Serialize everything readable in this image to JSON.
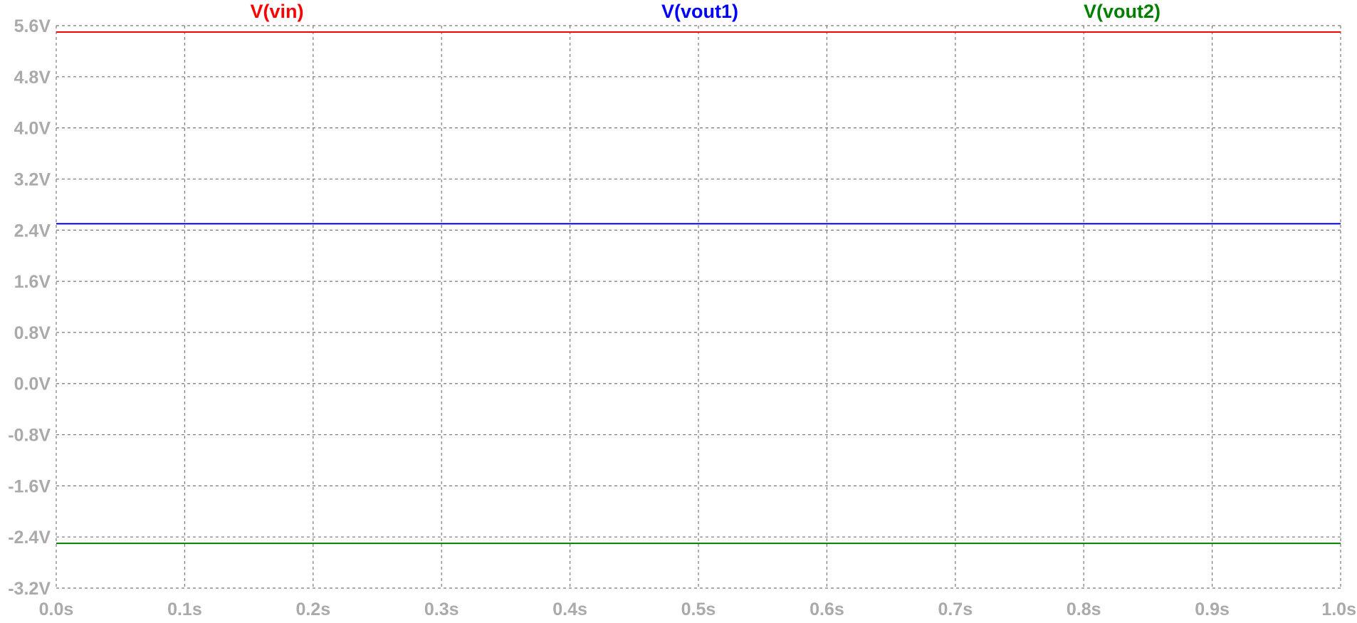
{
  "chart_data": {
    "type": "line",
    "title": "",
    "xlabel": "",
    "ylabel": "",
    "grid": true,
    "grid_style": "dashed",
    "legend_placement": "top",
    "xlim": [
      0.0,
      1.0
    ],
    "ylim": [
      -3.2,
      5.6
    ],
    "x_ticks": [
      0.0,
      0.1,
      0.2,
      0.3,
      0.4,
      0.5,
      0.6,
      0.7,
      0.8,
      0.9,
      1.0
    ],
    "x_tick_labels": [
      "0.0s",
      "0.1s",
      "0.2s",
      "0.3s",
      "0.4s",
      "0.5s",
      "0.6s",
      "0.7s",
      "0.8s",
      "0.9s",
      "1.0s"
    ],
    "y_ticks": [
      5.6,
      4.8,
      4.0,
      3.2,
      2.4,
      1.6,
      0.8,
      0.0,
      -0.8,
      -1.6,
      -2.4,
      -3.2
    ],
    "y_tick_labels": [
      "5.6V",
      "4.8V",
      "4.0V",
      "3.2V",
      "2.4V",
      "1.6V",
      "0.8V",
      "0.0V",
      "-0.8V",
      "-1.6V",
      "-2.4V",
      "-3.2V"
    ],
    "x": [
      0.0,
      1.0
    ],
    "series": [
      {
        "name": "V(vin)",
        "color": "#ff0000",
        "values": [
          5.5,
          5.5
        ]
      },
      {
        "name": "V(vout1)",
        "color": "#0000ff",
        "values": [
          2.5,
          2.5
        ]
      },
      {
        "name": "V(vout2)",
        "color": "#008000",
        "values": [
          -2.5,
          -2.5
        ]
      }
    ]
  }
}
